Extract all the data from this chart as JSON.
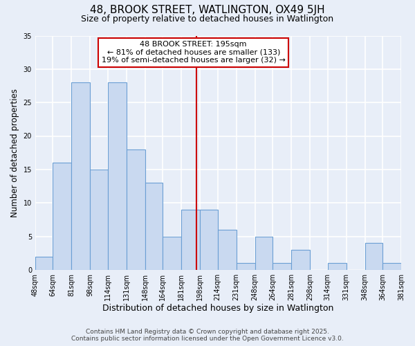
{
  "title": "48, BROOK STREET, WATLINGTON, OX49 5JH",
  "subtitle": "Size of property relative to detached houses in Watlington",
  "xlabel": "Distribution of detached houses by size in Watlington",
  "ylabel": "Number of detached properties",
  "bin_edges": [
    48,
    64,
    81,
    98,
    114,
    131,
    148,
    164,
    181,
    198,
    214,
    231,
    248,
    264,
    281,
    298,
    314,
    331,
    348,
    364,
    381
  ],
  "bin_labels": [
    "48sqm",
    "64sqm",
    "81sqm",
    "98sqm",
    "114sqm",
    "131sqm",
    "148sqm",
    "164sqm",
    "181sqm",
    "198sqm",
    "214sqm",
    "231sqm",
    "248sqm",
    "264sqm",
    "281sqm",
    "298sqm",
    "314sqm",
    "331sqm",
    "348sqm",
    "364sqm",
    "381sqm"
  ],
  "counts": [
    2,
    16,
    28,
    15,
    28,
    18,
    13,
    5,
    9,
    9,
    6,
    1,
    5,
    1,
    3,
    0,
    1,
    0,
    4,
    1
  ],
  "bar_color": "#c9d9f0",
  "bar_edge_color": "#6b9fd4",
  "vline_x": 195,
  "vline_color": "#cc0000",
  "annotation_line1": "48 BROOK STREET: 195sqm",
  "annotation_line2": "← 81% of detached houses are smaller (133)",
  "annotation_line3": "19% of semi-detached houses are larger (32) →",
  "annotation_box_color": "#ffffff",
  "annotation_box_edge_color": "#cc0000",
  "ylim": [
    0,
    35
  ],
  "yticks": [
    0,
    5,
    10,
    15,
    20,
    25,
    30,
    35
  ],
  "background_color": "#e8eef8",
  "grid_color": "#ffffff",
  "footer_line1": "Contains HM Land Registry data © Crown copyright and database right 2025.",
  "footer_line2": "Contains public sector information licensed under the Open Government Licence v3.0.",
  "title_fontsize": 11,
  "subtitle_fontsize": 9,
  "xlabel_fontsize": 9,
  "ylabel_fontsize": 8.5,
  "tick_fontsize": 7,
  "annot_fontsize": 8,
  "footer_fontsize": 6.5
}
